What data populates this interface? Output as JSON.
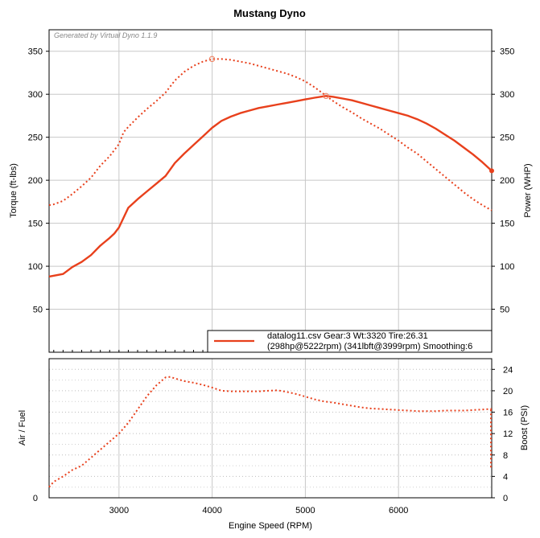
{
  "chart_data": [
    {
      "type": "line",
      "title": "Mustang Dyno",
      "watermark": "Generated by Virtual Dyno 1.1.9",
      "xlabel": "",
      "ylabel": "Torque (ft-lbs)",
      "ylabel_right": "Power (WHP)",
      "xlim": [
        2250,
        7000
      ],
      "ylim": [
        0,
        375
      ],
      "y_ticks": [
        50,
        100,
        150,
        200,
        250,
        300,
        350
      ],
      "x_grid": [
        3000,
        4000,
        5000,
        6000
      ],
      "grid": true,
      "legend": {
        "placement": "bottom-right",
        "line1": "datalog11.csv Gear:3 Wt:3320 Tire:26.31",
        "line2": "(298hp@5222rpm) (341lbft@3999rpm) Smoothing:6"
      },
      "color": "#e8401c",
      "series": [
        {
          "role": "power",
          "style": "solid",
          "x": [
            2250,
            2400,
            2500,
            2600,
            2700,
            2800,
            2900,
            2950,
            3000,
            3100,
            3200,
            3300,
            3400,
            3500,
            3600,
            3700,
            3800,
            3900,
            4000,
            4100,
            4200,
            4300,
            4400,
            4500,
            4600,
            4700,
            4800,
            4900,
            5000,
            5100,
            5222,
            5300,
            5400,
            5500,
            5600,
            5700,
            5800,
            5900,
            6000,
            6100,
            6200,
            6300,
            6400,
            6500,
            6600,
            6700,
            6800,
            6900,
            7000
          ],
          "y": [
            88,
            91,
            99,
            105,
            113,
            124,
            133,
            138,
            145,
            168,
            178,
            187,
            196,
            205,
            220,
            231,
            241,
            251,
            261,
            269,
            274,
            278,
            281,
            284,
            286,
            288,
            290,
            292,
            294,
            296,
            298,
            297,
            295,
            293,
            290,
            287,
            284,
            281,
            278,
            275,
            271,
            266,
            260,
            253,
            246,
            238,
            230,
            221,
            211
          ]
        },
        {
          "role": "torque",
          "style": "dotted",
          "x": [
            2250,
            2300,
            2400,
            2500,
            2600,
            2700,
            2800,
            2900,
            3000,
            3050,
            3100,
            3200,
            3300,
            3400,
            3500,
            3600,
            3700,
            3800,
            3900,
            3999,
            4100,
            4200,
            4300,
            4400,
            4500,
            4600,
            4700,
            4800,
            4900,
            5000,
            5100,
            5200,
            5300,
            5400,
            5500,
            5600,
            5700,
            5800,
            5900,
            6000,
            6100,
            6200,
            6300,
            6400,
            6500,
            6600,
            6700,
            6800,
            6900,
            7000
          ],
          "y": [
            171,
            172,
            176,
            184,
            193,
            203,
            217,
            228,
            242,
            256,
            262,
            273,
            283,
            292,
            302,
            316,
            326,
            333,
            338,
            341,
            341,
            340,
            338,
            336,
            333,
            330,
            327,
            324,
            320,
            315,
            308,
            300,
            292,
            285,
            279,
            272,
            266,
            260,
            253,
            246,
            238,
            231,
            222,
            213,
            204,
            195,
            186,
            178,
            171,
            165
          ]
        }
      ],
      "markers": [
        {
          "series": "torque",
          "x": 3999,
          "y": 341
        },
        {
          "series": "power",
          "x": 5222,
          "y": 298
        }
      ]
    },
    {
      "type": "line",
      "xlabel": "Engine Speed (RPM)",
      "ylabel": "Air / Fuel",
      "ylabel_right": "Boost (PSI)",
      "xlim": [
        2250,
        7000
      ],
      "ylim": [
        0,
        26
      ],
      "y_ticks": [
        0,
        4,
        8,
        12,
        16,
        20,
        24
      ],
      "y_left_ticks": [
        0
      ],
      "x_ticks": [
        3000,
        4000,
        5000,
        6000
      ],
      "grid": true,
      "color": "#e8401c",
      "series": [
        {
          "role": "boost",
          "style": "dotted",
          "x": [
            2250,
            2300,
            2400,
            2500,
            2600,
            2700,
            2800,
            2900,
            3000,
            3100,
            3200,
            3300,
            3400,
            3500,
            3550,
            3600,
            3700,
            3800,
            3900,
            4000,
            4100,
            4200,
            4300,
            4400,
            4500,
            4600,
            4700,
            4800,
            4900,
            5000,
            5100,
            5200,
            5300,
            5400,
            5500,
            5600,
            5700,
            5800,
            5900,
            6000,
            6100,
            6200,
            6300,
            6400,
            6500,
            6600,
            6700,
            6800,
            6900,
            7000
          ],
          "y": [
            2,
            3,
            4,
            5.2,
            6,
            7.5,
            9,
            10.5,
            12,
            14,
            16.5,
            19,
            21,
            22.5,
            22.6,
            22.3,
            21.8,
            21.5,
            21.1,
            20.6,
            20,
            19.9,
            19.9,
            19.9,
            19.9,
            20,
            20.1,
            19.8,
            19.4,
            18.9,
            18.4,
            18.0,
            17.8,
            17.5,
            17.2,
            16.9,
            16.7,
            16.6,
            16.5,
            16.4,
            16.3,
            16.2,
            16.2,
            16.2,
            16.3,
            16.3,
            16.3,
            16.4,
            16.5,
            16.6
          ]
        }
      ]
    }
  ]
}
